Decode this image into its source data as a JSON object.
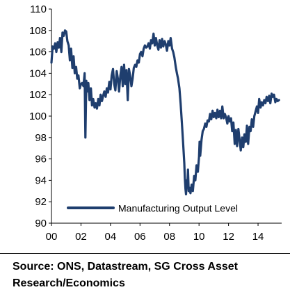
{
  "chart_data": {
    "type": "line",
    "title": "",
    "xlabel": "",
    "ylabel": "",
    "xlim": [
      2000,
      2015.6
    ],
    "ylim": [
      90,
      110
    ],
    "x_ticks": [
      2000,
      2002,
      2004,
      2006,
      2008,
      2010,
      2012,
      2014
    ],
    "x_tick_labels": [
      "00",
      "02",
      "04",
      "06",
      "08",
      "10",
      "12",
      "14"
    ],
    "y_ticks": [
      90,
      92,
      94,
      96,
      98,
      100,
      102,
      104,
      106,
      108,
      110
    ],
    "y_tick_labels": [
      "90",
      "92",
      "94",
      "96",
      "98",
      "100",
      "102",
      "104",
      "106",
      "108",
      "110"
    ],
    "grid": false,
    "legend_position": "bottom-center",
    "series": [
      {
        "name": "Manufacturing Output Level",
        "color": "#1f3e6e",
        "points": [
          [
            2000.0,
            105.0
          ],
          [
            2000.08,
            106.5
          ],
          [
            2000.17,
            106.3
          ],
          [
            2000.25,
            106.8
          ],
          [
            2000.33,
            106.0
          ],
          [
            2000.42,
            106.9
          ],
          [
            2000.5,
            106.4
          ],
          [
            2000.58,
            107.3
          ],
          [
            2000.67,
            106.0
          ],
          [
            2000.75,
            107.8
          ],
          [
            2000.83,
            107.5
          ],
          [
            2000.92,
            108.0
          ],
          [
            2001.0,
            107.9
          ],
          [
            2001.08,
            107.0
          ],
          [
            2001.17,
            106.6
          ],
          [
            2001.25,
            105.2
          ],
          [
            2001.33,
            106.3
          ],
          [
            2001.42,
            104.5
          ],
          [
            2001.5,
            105.6
          ],
          [
            2001.58,
            104.0
          ],
          [
            2001.67,
            104.6
          ],
          [
            2001.75,
            103.5
          ],
          [
            2001.83,
            103.8
          ],
          [
            2001.92,
            102.6
          ],
          [
            2002.0,
            103.0
          ],
          [
            2002.08,
            103.1
          ],
          [
            2002.17,
            102.8
          ],
          [
            2002.25,
            104.0
          ],
          [
            2002.3,
            98.0
          ],
          [
            2002.36,
            103.3
          ],
          [
            2002.42,
            102.3
          ],
          [
            2002.5,
            103.1
          ],
          [
            2002.58,
            101.5
          ],
          [
            2002.67,
            102.6
          ],
          [
            2002.75,
            101.0
          ],
          [
            2002.83,
            101.6
          ],
          [
            2002.92,
            100.8
          ],
          [
            2003.0,
            101.2
          ],
          [
            2003.08,
            100.7
          ],
          [
            2003.17,
            101.6
          ],
          [
            2003.25,
            101.0
          ],
          [
            2003.33,
            102.0
          ],
          [
            2003.42,
            101.4
          ],
          [
            2003.5,
            101.9
          ],
          [
            2003.58,
            102.3
          ],
          [
            2003.67,
            101.8
          ],
          [
            2003.75,
            102.6
          ],
          [
            2003.83,
            102.2
          ],
          [
            2003.92,
            103.2
          ],
          [
            2004.0,
            102.5
          ],
          [
            2004.08,
            103.8
          ],
          [
            2004.17,
            104.4
          ],
          [
            2004.25,
            103.0
          ],
          [
            2004.33,
            102.4
          ],
          [
            2004.42,
            104.2
          ],
          [
            2004.5,
            103.5
          ],
          [
            2004.58,
            102.3
          ],
          [
            2004.67,
            103.8
          ],
          [
            2004.75,
            104.6
          ],
          [
            2004.83,
            102.8
          ],
          [
            2004.92,
            104.8
          ],
          [
            2005.0,
            103.0
          ],
          [
            2005.08,
            104.3
          ],
          [
            2005.17,
            101.5
          ],
          [
            2005.25,
            104.4
          ],
          [
            2005.33,
            103.8
          ],
          [
            2005.42,
            102.8
          ],
          [
            2005.5,
            103.5
          ],
          [
            2005.58,
            104.5
          ],
          [
            2005.67,
            104.8
          ],
          [
            2005.75,
            104.6
          ],
          [
            2005.83,
            105.2
          ],
          [
            2005.92,
            105.0
          ],
          [
            2006.0,
            105.8
          ],
          [
            2006.08,
            106.0
          ],
          [
            2006.17,
            105.6
          ],
          [
            2006.25,
            106.3
          ],
          [
            2006.33,
            106.6
          ],
          [
            2006.42,
            106.4
          ],
          [
            2006.5,
            106.5
          ],
          [
            2006.58,
            106.8
          ],
          [
            2006.67,
            106.3
          ],
          [
            2006.75,
            107.1
          ],
          [
            2006.83,
            106.8
          ],
          [
            2006.92,
            107.7
          ],
          [
            2007.0,
            106.6
          ],
          [
            2007.08,
            107.3
          ],
          [
            2007.17,
            106.6
          ],
          [
            2007.25,
            106.2
          ],
          [
            2007.33,
            107.1
          ],
          [
            2007.42,
            106.4
          ],
          [
            2007.5,
            107.2
          ],
          [
            2007.58,
            106.5
          ],
          [
            2007.67,
            107.0
          ],
          [
            2007.75,
            106.7
          ],
          [
            2007.83,
            106.1
          ],
          [
            2007.92,
            107.0
          ],
          [
            2008.0,
            106.6
          ],
          [
            2008.08,
            107.3
          ],
          [
            2008.17,
            106.3
          ],
          [
            2008.25,
            106.0
          ],
          [
            2008.33,
            105.5
          ],
          [
            2008.42,
            104.6
          ],
          [
            2008.5,
            104.0
          ],
          [
            2008.58,
            103.5
          ],
          [
            2008.67,
            102.6
          ],
          [
            2008.75,
            101.2
          ],
          [
            2008.83,
            99.5
          ],
          [
            2008.92,
            97.5
          ],
          [
            2009.0,
            95.6
          ],
          [
            2009.04,
            94.2
          ],
          [
            2009.08,
            93.2
          ],
          [
            2009.12,
            92.7
          ],
          [
            2009.17,
            94.0
          ],
          [
            2009.21,
            93.4
          ],
          [
            2009.25,
            95.0
          ],
          [
            2009.3,
            93.0
          ],
          [
            2009.36,
            93.3
          ],
          [
            2009.42,
            92.8
          ],
          [
            2009.5,
            93.6
          ],
          [
            2009.58,
            93.0
          ],
          [
            2009.67,
            94.4
          ],
          [
            2009.75,
            94.0
          ],
          [
            2009.83,
            95.4
          ],
          [
            2009.92,
            94.8
          ],
          [
            2010.0,
            96.2
          ],
          [
            2010.04,
            97.6
          ],
          [
            2010.08,
            96.3
          ],
          [
            2010.17,
            97.8
          ],
          [
            2010.25,
            98.6
          ],
          [
            2010.33,
            98.8
          ],
          [
            2010.42,
            99.3
          ],
          [
            2010.5,
            99.0
          ],
          [
            2010.58,
            99.6
          ],
          [
            2010.67,
            99.5
          ],
          [
            2010.75,
            100.2
          ],
          [
            2010.83,
            99.7
          ],
          [
            2010.92,
            100.5
          ],
          [
            2011.0,
            99.9
          ],
          [
            2011.08,
            100.3
          ],
          [
            2011.17,
            99.8
          ],
          [
            2011.25,
            100.6
          ],
          [
            2011.33,
            99.9
          ],
          [
            2011.42,
            100.5
          ],
          [
            2011.5,
            99.8
          ],
          [
            2011.58,
            100.9
          ],
          [
            2011.67,
            99.8
          ],
          [
            2011.75,
            100.2
          ],
          [
            2011.83,
            99.9
          ],
          [
            2011.92,
            99.3
          ],
          [
            2012.0,
            100.0
          ],
          [
            2012.08,
            99.5
          ],
          [
            2012.17,
            99.8
          ],
          [
            2012.25,
            98.6
          ],
          [
            2012.33,
            99.4
          ],
          [
            2012.42,
            97.4
          ],
          [
            2012.5,
            98.7
          ],
          [
            2012.58,
            97.2
          ],
          [
            2012.67,
            98.8
          ],
          [
            2012.75,
            97.8
          ],
          [
            2012.83,
            96.8
          ],
          [
            2012.92,
            98.0
          ],
          [
            2013.0,
            97.1
          ],
          [
            2013.08,
            98.3
          ],
          [
            2013.17,
            97.6
          ],
          [
            2013.25,
            99.1
          ],
          [
            2013.33,
            97.4
          ],
          [
            2013.42,
            99.0
          ],
          [
            2013.5,
            98.6
          ],
          [
            2013.58,
            99.7
          ],
          [
            2013.67,
            99.0
          ],
          [
            2013.75,
            100.0
          ],
          [
            2013.83,
            100.4
          ],
          [
            2013.92,
            100.9
          ],
          [
            2014.0,
            100.3
          ],
          [
            2014.08,
            101.6
          ],
          [
            2014.17,
            100.8
          ],
          [
            2014.25,
            101.3
          ],
          [
            2014.33,
            101.0
          ],
          [
            2014.42,
            101.5
          ],
          [
            2014.5,
            101.2
          ],
          [
            2014.58,
            101.8
          ],
          [
            2014.67,
            101.4
          ],
          [
            2014.75,
            101.9
          ],
          [
            2014.83,
            101.2
          ],
          [
            2014.92,
            102.1
          ],
          [
            2015.0,
            101.8
          ],
          [
            2015.08,
            102.0
          ],
          [
            2015.17,
            101.3
          ],
          [
            2015.25,
            101.6
          ],
          [
            2015.33,
            101.4
          ],
          [
            2015.42,
            101.5
          ]
        ]
      }
    ]
  },
  "source": "Source: ONS, Datastream, SG Cross Asset Research/Economics"
}
